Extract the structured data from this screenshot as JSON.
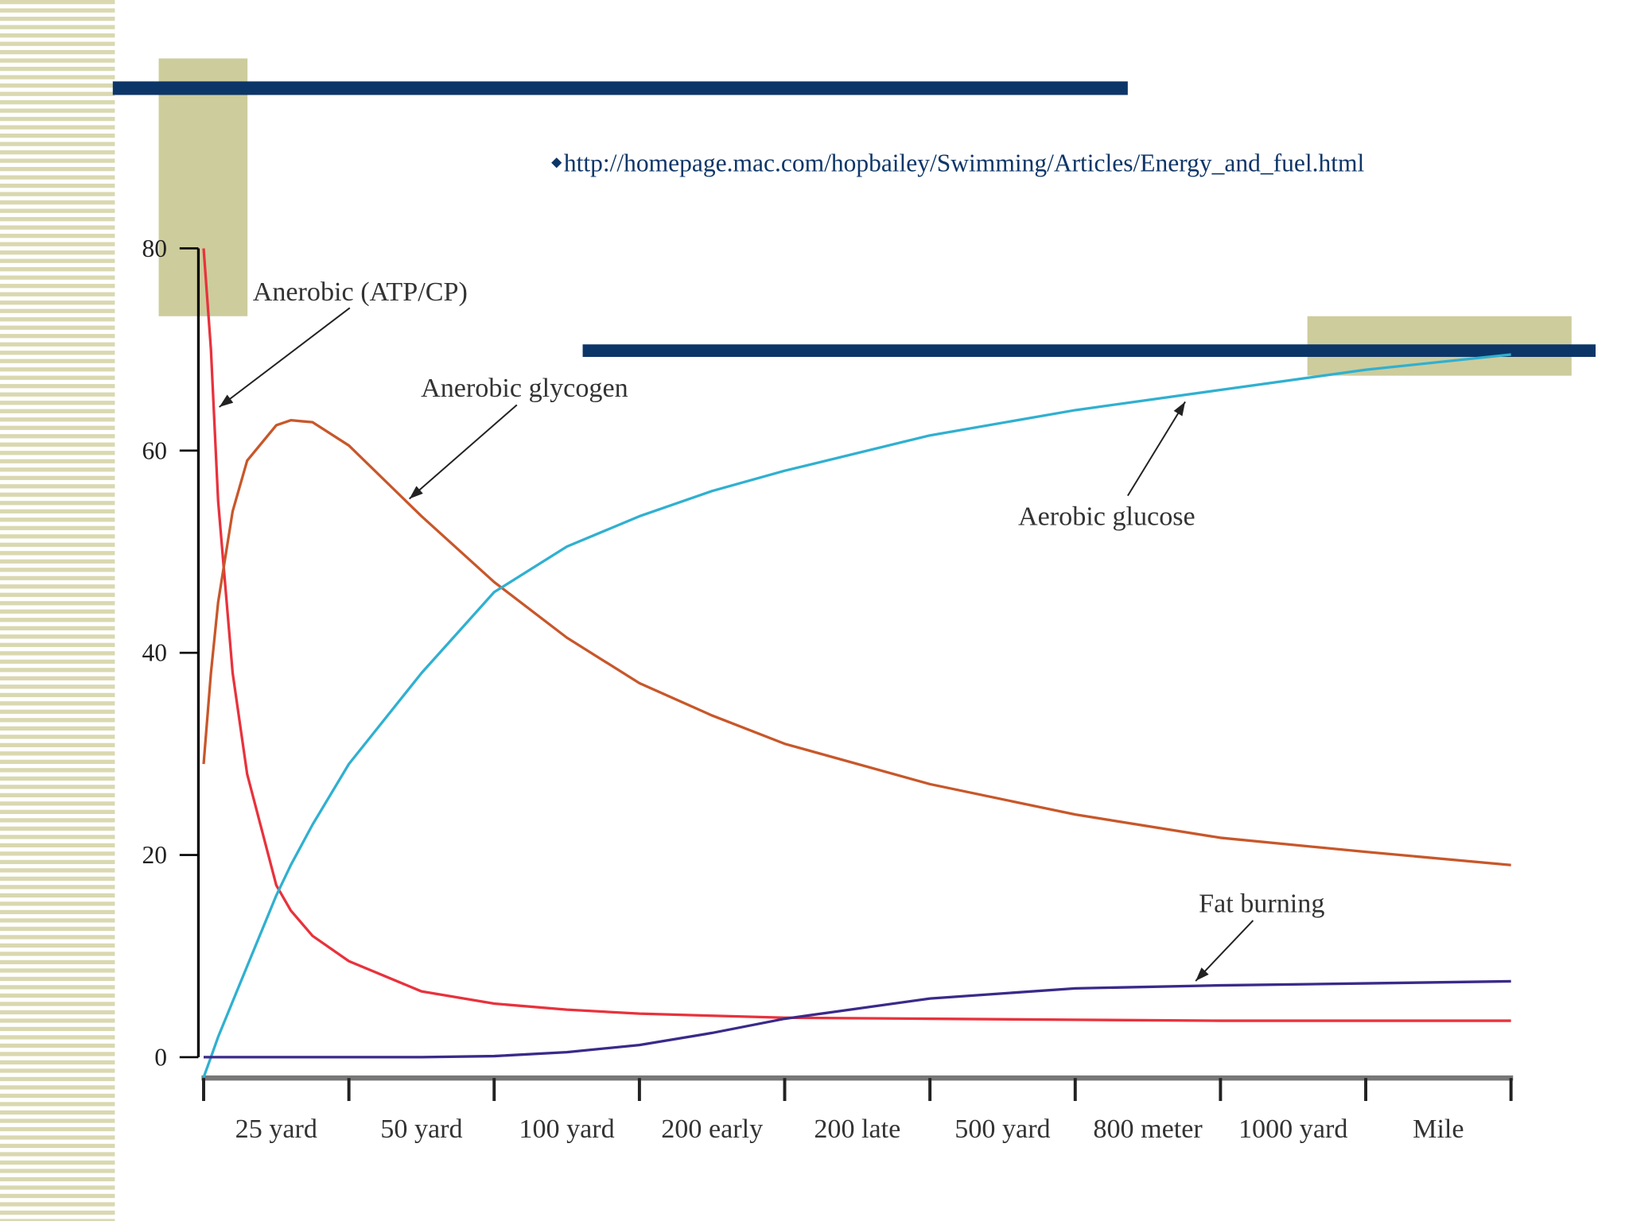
{
  "slide": {
    "url": "http://homepage.mac.com/hopbailey/Swimming/Articles/Energy_and_fuel.html"
  },
  "chart_data": {
    "type": "line",
    "categories": [
      "25 yard",
      "50 yard",
      "100 yard",
      "200 early",
      "200 late",
      "500 yard",
      "800 meter",
      "1000 yard",
      "Mile"
    ],
    "x": [
      0,
      0.05,
      0.1,
      0.2,
      0.3,
      0.5,
      0.6,
      0.75,
      1,
      1.5,
      2,
      2.5,
      3,
      3.5,
      4,
      5,
      6,
      7,
      8,
      9
    ],
    "xlim": [
      0,
      9
    ],
    "ylim": [
      0,
      80
    ],
    "yticks": [
      0,
      20,
      40,
      60,
      80
    ],
    "series": [
      {
        "name": "Anerobic (ATP/CP)",
        "color": "#e8323c",
        "values": [
          80,
          70,
          55,
          38,
          28,
          17,
          14.5,
          12,
          9.5,
          6.5,
          5.3,
          4.7,
          4.3,
          4.1,
          3.9,
          3.8,
          3.7,
          3.6,
          3.6,
          3.6
        ]
      },
      {
        "name": "Anerobic glycogen",
        "color": "#c8572a",
        "values": [
          29,
          38,
          45,
          54,
          59,
          62.5,
          63,
          62.8,
          60.5,
          53.5,
          47,
          41.5,
          37,
          33.8,
          31,
          27,
          24,
          21.7,
          20.3,
          19
        ]
      },
      {
        "name": "Aerobic glucose",
        "color": "#30b0d0",
        "values": [
          -2,
          0,
          2,
          5.5,
          9,
          16,
          19,
          23,
          29,
          38,
          46,
          50.5,
          53.5,
          56,
          58,
          61.5,
          64,
          66,
          68,
          69.5
        ]
      },
      {
        "name": "Fat burning",
        "color": "#3a2a8a",
        "values": [
          0,
          0,
          0,
          0,
          0,
          0,
          0,
          0,
          0,
          0,
          0.1,
          0.5,
          1.2,
          2.4,
          3.8,
          5.8,
          6.8,
          7.1,
          7.3,
          7.5
        ]
      }
    ]
  }
}
